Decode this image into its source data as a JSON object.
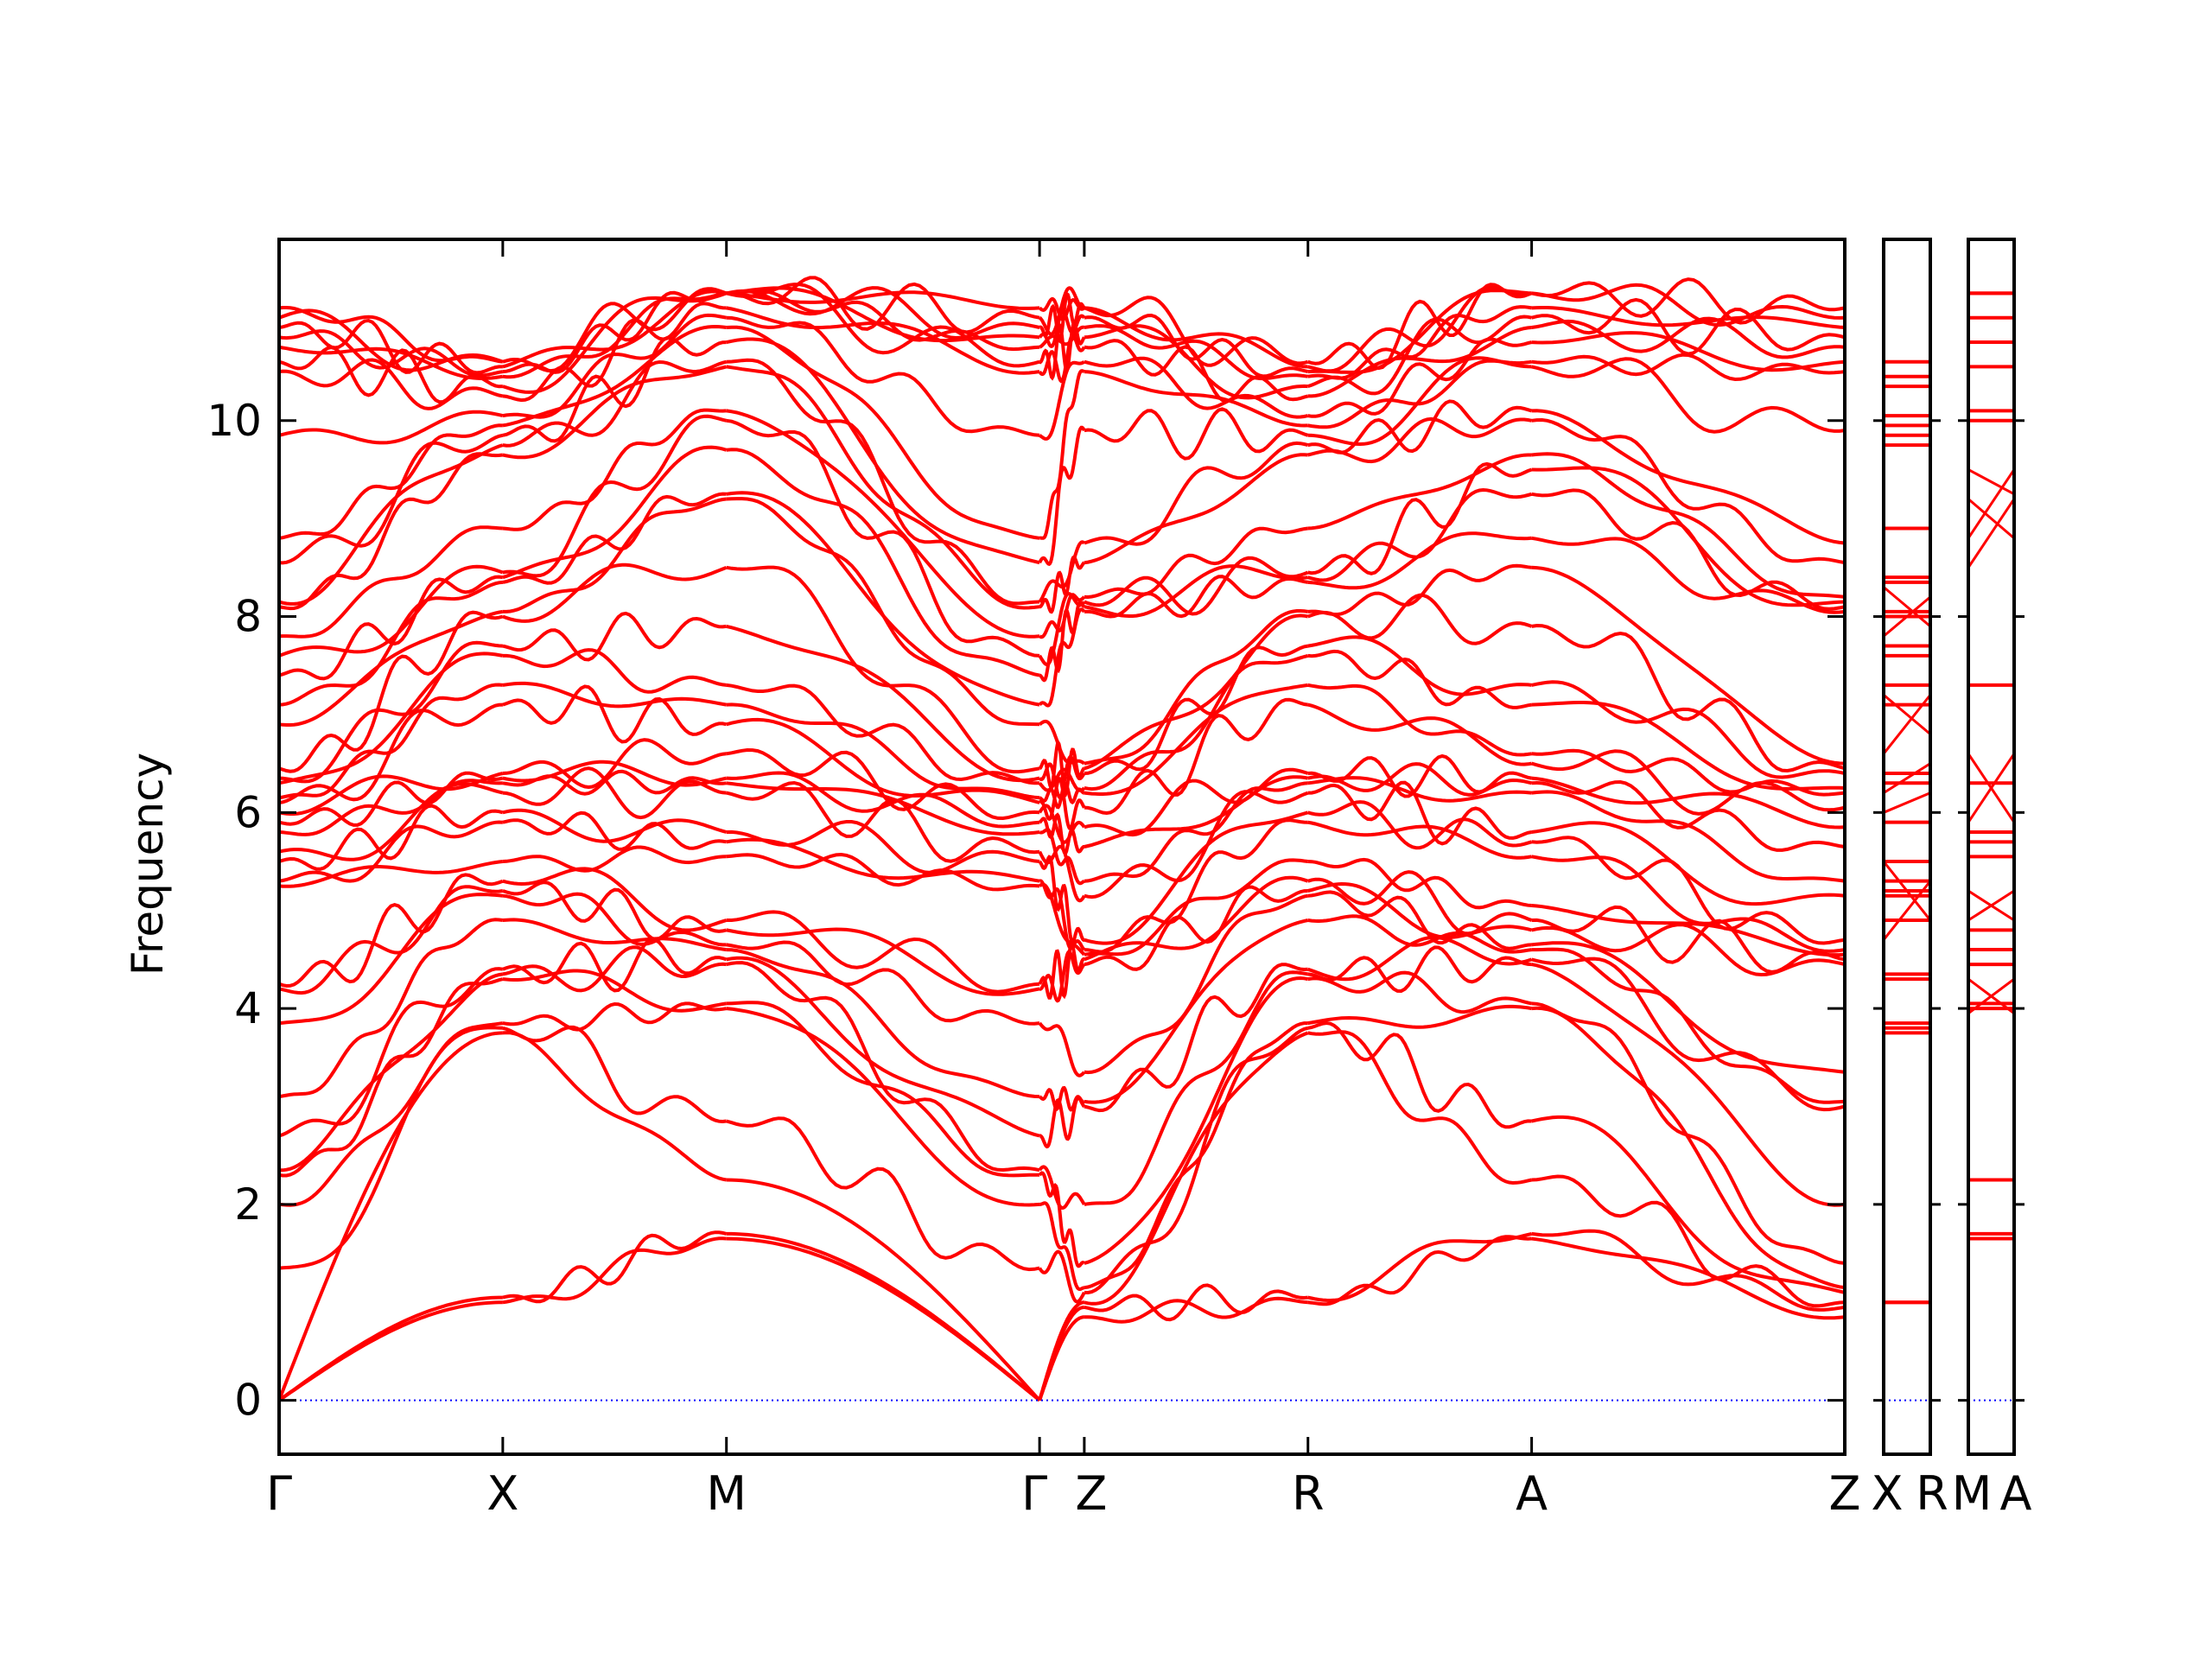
{
  "chart_data": {
    "type": "line",
    "title": "",
    "xlabel": "",
    "ylabel": "Frequency",
    "ylim": [
      -0.55,
      11.85
    ],
    "yticks": [
      0,
      2,
      4,
      6,
      8,
      10
    ],
    "ytick_labels": [
      "0",
      "2",
      "4",
      "6",
      "8",
      "10"
    ],
    "grid": false,
    "legend": "none",
    "colors": {
      "band": "#ff0000",
      "zero_line": "#0000ff",
      "axes": "#000000"
    },
    "panels": [
      {
        "id": "main",
        "xlim": [
          0,
          7.0
        ],
        "xticks": [
          0,
          1.0,
          2.0,
          3.4,
          3.6,
          4.6,
          5.6,
          7.0
        ],
        "xtick_labels": [
          "Γ",
          "X",
          "M",
          "Γ",
          "Z",
          "R",
          "A",
          "Z"
        ],
        "segments": [
          {
            "from": "Γ",
            "to": "X",
            "x0": 0,
            "x1": 1.0
          },
          {
            "from": "X",
            "to": "M",
            "x0": 1.0,
            "x1": 2.0
          },
          {
            "from": "M",
            "to": "Γ",
            "x0": 2.0,
            "x1": 3.4
          },
          {
            "from": "Γ",
            "to": "Z",
            "x0": 3.4,
            "x1": 3.6
          },
          {
            "from": "Z",
            "to": "R",
            "x0": 3.6,
            "x1": 4.6
          },
          {
            "from": "R",
            "to": "A",
            "x0": 4.6,
            "x1": 5.6
          },
          {
            "from": "A",
            "to": "Z",
            "x0": 5.6,
            "x1": 7.0
          }
        ]
      },
      {
        "id": "XR",
        "xlim": [
          0,
          1
        ],
        "xtick_labels": [
          "X",
          "R"
        ]
      },
      {
        "id": "MA",
        "xlim": [
          0,
          1
        ],
        "xtick_labels": [
          "M",
          "A"
        ]
      }
    ],
    "special_point_frequencies": {
      "Γ": [
        0,
        0,
        0,
        1.35,
        2.0,
        2.3,
        2.35,
        2.7,
        3.1,
        3.85,
        4.2,
        4.25,
        5.25,
        5.3,
        5.5,
        5.6,
        5.8,
        5.9,
        6.0,
        6.1,
        6.15,
        6.3,
        6.35,
        6.45,
        6.9,
        7.1,
        7.4,
        7.6,
        7.8,
        8.1,
        8.15,
        8.55,
        8.8,
        9.85,
        10.5,
        10.6,
        10.75,
        10.85,
        10.95,
        11.05,
        11.15
      ],
      "X": [
        1.0,
        1.05,
        3.75,
        3.8,
        3.85,
        4.3,
        4.35,
        4.4,
        4.9,
        5.15,
        5.2,
        5.3,
        5.5,
        5.9,
        6.0,
        6.2,
        6.3,
        6.35,
        6.4,
        7.1,
        7.3,
        7.6,
        7.7,
        8.0,
        8.05,
        8.35,
        8.4,
        8.45,
        8.9,
        9.65,
        9.75,
        9.85,
        9.95,
        10.05,
        10.25,
        10.35,
        10.45,
        10.5,
        10.55,
        10.6
      ],
      "M": [
        1.65,
        1.7,
        2.25,
        2.85,
        4.0,
        4.05,
        4.45,
        4.5,
        4.6,
        4.65,
        4.8,
        4.9,
        5.55,
        5.7,
        5.8,
        6.2,
        6.3,
        6.35,
        6.6,
        6.9,
        7.1,
        7.3,
        7.9,
        8.5,
        9.2,
        9.25,
        9.7,
        10.0,
        10.1,
        10.55,
        10.6,
        10.8,
        10.95,
        11.05,
        11.15,
        11.3,
        11.3
      ],
      "Z": [
        0.85,
        0.95,
        1.0,
        1.1,
        1.15,
        1.4,
        2.0,
        3.0,
        3.05,
        3.35,
        4.45,
        4.5,
        4.55,
        4.6,
        4.7,
        5.15,
        5.3,
        5.65,
        5.85,
        6.05,
        6.2,
        6.25,
        6.4,
        6.45,
        6.5,
        8.05,
        8.1,
        8.15,
        8.2,
        8.55,
        8.75,
        9.9,
        10.5,
        10.6,
        10.75,
        10.85,
        10.95,
        11.05,
        11.15
      ],
      "R": [
        1.0,
        1.05,
        3.75,
        3.8,
        3.85,
        4.3,
        4.35,
        4.4,
        4.9,
        5.15,
        5.2,
        5.3,
        5.5,
        5.9,
        6.0,
        6.2,
        6.3,
        6.35,
        6.4,
        7.1,
        7.3,
        7.6,
        7.7,
        8.0,
        8.05,
        8.35,
        8.4,
        8.45,
        8.9,
        9.65,
        9.75,
        9.85,
        9.95,
        10.05,
        10.25,
        10.35,
        10.45,
        10.5,
        10.55,
        10.6
      ],
      "A": [
        1.65,
        1.7,
        2.25,
        2.85,
        4.0,
        4.05,
        4.45,
        4.5,
        4.6,
        4.65,
        4.8,
        4.9,
        5.05,
        5.55,
        5.7,
        5.8,
        6.2,
        6.3,
        6.35,
        6.5,
        6.6,
        7.1,
        7.3,
        7.9,
        8.5,
        8.8,
        9.25,
        9.5,
        9.65,
        10.0,
        10.1,
        10.55,
        10.6,
        10.8,
        10.95,
        11.05,
        11.15,
        11.3,
        11.3
      ]
    },
    "xr_bands": [
      1.0,
      1.0,
      3.75,
      3.8,
      3.85,
      4.3,
      4.35,
      4.9,
      5.15,
      5.2,
      5.3,
      5.5,
      5.9,
      6.3,
      6.4,
      7.1,
      7.3,
      7.6,
      7.7,
      8.0,
      8.05,
      8.35,
      8.4,
      8.9,
      9.75,
      9.85,
      9.95,
      10.05,
      10.35,
      10.45,
      10.6
    ],
    "ma_bands": [
      1.65,
      1.7,
      2.25,
      4.0,
      4.05,
      4.45,
      4.6,
      4.8,
      5.55,
      5.7,
      5.8,
      6.3,
      7.3,
      10.0,
      10.1,
      10.55,
      10.8,
      11.05,
      11.3,
      11.3
    ],
    "xr_crossing_bands": [
      [
        4.7,
        5.3
      ],
      [
        5.5,
        4.9
      ],
      [
        6.0,
        6.2
      ],
      [
        6.2,
        6.5
      ],
      [
        6.6,
        7.2
      ],
      [
        7.2,
        6.8
      ],
      [
        7.8,
        8.2
      ],
      [
        8.3,
        7.9
      ]
    ],
    "ma_crossing_bands": [
      [
        3.95,
        4.3
      ],
      [
        4.3,
        3.95
      ],
      [
        4.9,
        5.2
      ],
      [
        5.2,
        4.9
      ],
      [
        5.9,
        6.6
      ],
      [
        6.6,
        5.9
      ],
      [
        8.5,
        9.2
      ],
      [
        9.2,
        8.8
      ],
      [
        9.5,
        9.25
      ],
      [
        8.8,
        9.5
      ]
    ]
  }
}
